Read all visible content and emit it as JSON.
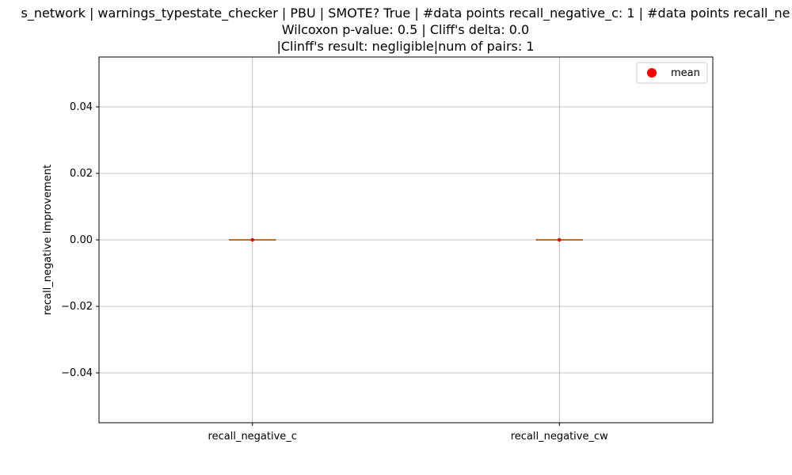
{
  "chart_data": {
    "type": "box",
    "title_lines": [
      "s_network | warnings_typestate_checker | PBU | SMOTE? True | #data points recall_negative_c: 1 | #data points recall_ne",
      "Wilcoxon p-value: 0.5 | Cliff's delta: 0.0",
      "|Clinff's result: negligible|num of pairs: 1"
    ],
    "ylabel": "recall_negative Improvement",
    "xlabel": "",
    "categories": [
      "recall_negative_c",
      "recall_negative_cw"
    ],
    "boxes": [
      {
        "category": "recall_negative_c",
        "min": 0.0,
        "q1": 0.0,
        "median": 0.0,
        "q3": 0.0,
        "max": 0.0,
        "mean": 0.0
      },
      {
        "category": "recall_negative_cw",
        "min": 0.0,
        "q1": 0.0,
        "median": 0.0,
        "q3": 0.0,
        "max": 0.0,
        "mean": 0.0
      }
    ],
    "ylim": [
      -0.055,
      0.055
    ],
    "yticks": [
      -0.04,
      -0.02,
      0.0,
      0.02,
      0.04
    ],
    "ytick_labels": [
      "−0.04",
      "−0.02",
      "0.00",
      "0.02",
      "0.04"
    ],
    "grid": true,
    "legend": {
      "position": "top-right",
      "entries": [
        {
          "label": "mean",
          "marker": "circle",
          "color": "#ff0000"
        }
      ]
    },
    "colors": {
      "median": "#ff7f0e",
      "mean": "#ff0000",
      "box": "#000000",
      "grid": "#b0b0b0"
    }
  }
}
